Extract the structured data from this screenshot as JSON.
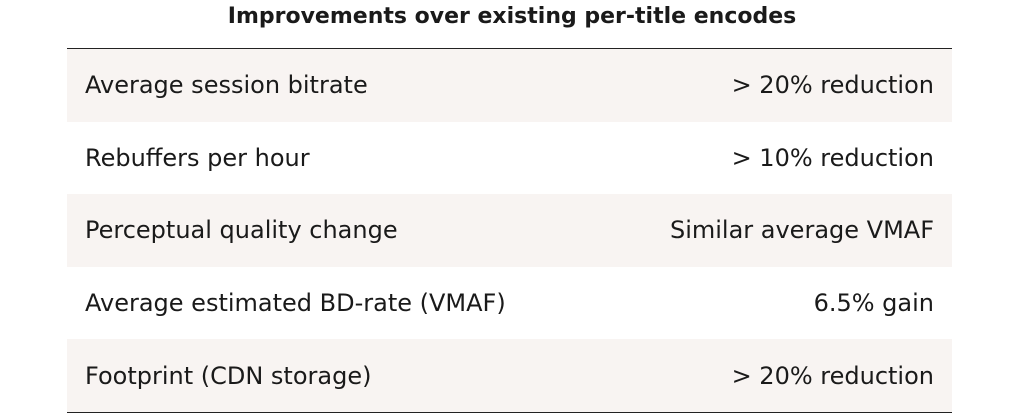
{
  "title": "Improvements over existing per-title encodes",
  "rows": [
    {
      "label": "Average session bitrate",
      "value": "> 20% reduction"
    },
    {
      "label": "Rebuffers per hour",
      "value": "> 10% reduction"
    },
    {
      "label": "Perceptual quality change",
      "value": "Similar average VMAF"
    },
    {
      "label": "Average estimated BD-rate (VMAF)",
      "value": "6.5% gain"
    },
    {
      "label": "Footprint (CDN storage)",
      "value": "> 20% reduction"
    }
  ],
  "colors": {
    "shaded_row": "#f8f4f2",
    "rule": "#222222",
    "text": "#1a1a1a"
  }
}
